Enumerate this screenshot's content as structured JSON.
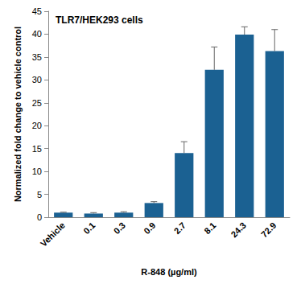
{
  "chart_data": {
    "type": "bar",
    "title": "TLR7/HEK293 cells",
    "x_label": "R-848 (µg/ml)",
    "y_label": "Normalized fold change to vehicle control",
    "categories": [
      "Vehicle",
      "0.1",
      "0.3",
      "0.9",
      "2.7",
      "8.1",
      "24.3",
      "72.9"
    ],
    "values": [
      1.0,
      0.8,
      1.0,
      3.1,
      14.0,
      32.2,
      39.9,
      36.3
    ],
    "errors": [
      0.1,
      0.2,
      0.2,
      0.3,
      2.5,
      5.0,
      1.7,
      4.7
    ],
    "color": "#1b6192",
    "ylim": [
      0,
      45
    ],
    "yticks": [
      0,
      5,
      10,
      15,
      20,
      25,
      30,
      35,
      40,
      45
    ],
    "grid": false
  }
}
